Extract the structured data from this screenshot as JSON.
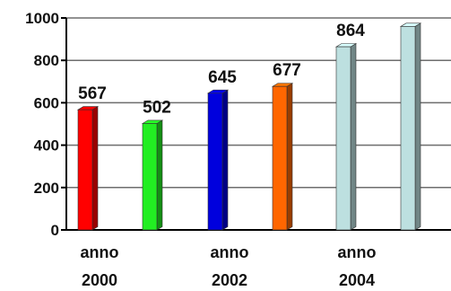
{
  "chart_data": {
    "type": "bar",
    "title": "",
    "xlabel": "",
    "ylabel": "",
    "ylim": [
      0,
      1000
    ],
    "yticks": [
      0,
      200,
      400,
      600,
      800,
      1000
    ],
    "grid": true,
    "style": "3d",
    "categories": [
      "anno 2000",
      "",
      "anno 2002",
      "",
      "anno 2004",
      ""
    ],
    "category_labels": [
      {
        "line1": "anno",
        "line2": "2000"
      },
      {
        "line1": "anno",
        "line2": "2002"
      },
      {
        "line1": "anno",
        "line2": "2004"
      }
    ],
    "values": [
      567,
      502,
      645,
      677,
      864,
      960
    ],
    "data_labels": [
      "567",
      "502",
      "645",
      "677",
      "864",
      ""
    ],
    "colors": [
      "#ff0000",
      "#22ee22",
      "#0000dd",
      "#ff6600",
      "#bde0e0",
      "#bde0e0"
    ]
  }
}
